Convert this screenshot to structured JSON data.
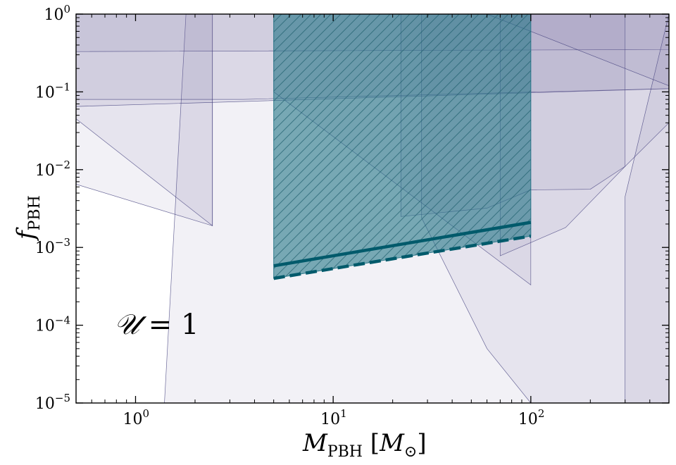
{
  "chart_data": {
    "type": "area",
    "xscale": "log",
    "yscale": "log",
    "xlim": [
      0.5,
      500
    ],
    "ylim": [
      1e-05,
      1
    ],
    "grid": false,
    "xlabel": "M_PBH [M_⊙]",
    "xlabel_parts": {
      "main": "M",
      "sub": "PBH",
      "bracket_open": " [",
      "unit": "M",
      "unit_sub": "⊙",
      "bracket_close": "]"
    },
    "ylabel": "f_PBH",
    "ylabel_parts": {
      "main": "f",
      "sub": "PBH"
    },
    "annotation": "𝒰 = 1",
    "annotation_parts": {
      "symbol": "𝒰",
      "rest": " = 1"
    },
    "x_ticks": [
      {
        "value": 1,
        "base": "10",
        "exp": "0"
      },
      {
        "value": 10,
        "base": "10",
        "exp": "1"
      },
      {
        "value": 100,
        "base": "10",
        "exp": "2"
      }
    ],
    "y_ticks": [
      {
        "value": 1,
        "base": "10",
        "exp": "0"
      },
      {
        "value": 0.1,
        "base": "10",
        "exp": "−1"
      },
      {
        "value": 0.01,
        "base": "10",
        "exp": "−2"
      },
      {
        "value": 0.001,
        "base": "10",
        "exp": "−3"
      },
      {
        "value": 0.0001,
        "base": "10",
        "exp": "−4"
      },
      {
        "value": 1e-05,
        "base": "10",
        "exp": "−5"
      }
    ],
    "colors": {
      "constraint_fill": "#7b7aa8",
      "constraint_edge": "#3d3b7a",
      "highlight_fill": "#2c7a8a",
      "highlight_line": "#005a6b"
    },
    "constraints": [
      {
        "x": [
          0.5,
          2.45,
          2.45,
          0.5
        ],
        "y": [
          1,
          1,
          0.0019,
          0.0065
        ]
      },
      {
        "x": [
          0.5,
          1.0,
          1.7,
          2.45,
          2.45,
          0.5
        ],
        "y": [
          1,
          1,
          1,
          1,
          0.0019,
          0.045
        ]
      },
      {
        "x": [
          1.4,
          1.8,
          500,
          500,
          0.5,
          0.5,
          1.4
        ],
        "y": [
          1e-05,
          1,
          1,
          1e-05,
          1e-05,
          1e-05,
          1e-05
        ]
      },
      {
        "x": [
          0.5,
          500,
          500,
          0.5
        ],
        "y": [
          0.065,
          0.11,
          1,
          1
        ]
      },
      {
        "x": [
          0.5,
          3.5,
          500,
          500,
          0.5
        ],
        "y": [
          0.08,
          0.08,
          0.11,
          1,
          1
        ]
      },
      {
        "x": [
          0.5,
          500,
          500,
          0.5
        ],
        "y": [
          0.33,
          0.35,
          1,
          1
        ]
      },
      {
        "x": [
          5,
          100,
          100,
          5
        ],
        "y": [
          1,
          1,
          0.00033,
          0.1
        ]
      },
      {
        "x": [
          22,
          60,
          100,
          200,
          300,
          300,
          22
        ],
        "y": [
          0.0025,
          0.0032,
          0.0055,
          0.0056,
          0.011,
          1,
          1
        ]
      },
      {
        "x": [
          70,
          150,
          300,
          500,
          500,
          70
        ],
        "y": [
          0.00078,
          0.0018,
          0.011,
          0.04,
          1,
          1
        ]
      },
      {
        "x": [
          28,
          60,
          100,
          500,
          500,
          28
        ],
        "y": [
          0.0024,
          5e-05,
          1e-05,
          1e-05,
          1,
          1
        ]
      },
      {
        "x": [
          300,
          500,
          500,
          300
        ],
        "y": [
          0.0045,
          1,
          1e-05,
          1e-05
        ]
      },
      {
        "x": [
          5,
          22,
          60,
          500,
          500,
          5
        ],
        "y": [
          1,
          1,
          1,
          0.12,
          1,
          1
        ]
      }
    ],
    "highlight_region": {
      "x": [
        5,
        100,
        100,
        5
      ],
      "y": [
        1,
        1,
        0.0014,
        0.0004
      ]
    },
    "series": [
      {
        "name": "",
        "style": "solid",
        "x": [
          5,
          100
        ],
        "y": [
          0.00058,
          0.0021
        ]
      },
      {
        "name": "",
        "style": "dashed",
        "x": [
          5,
          100
        ],
        "y": [
          0.0004,
          0.0014
        ]
      }
    ]
  }
}
